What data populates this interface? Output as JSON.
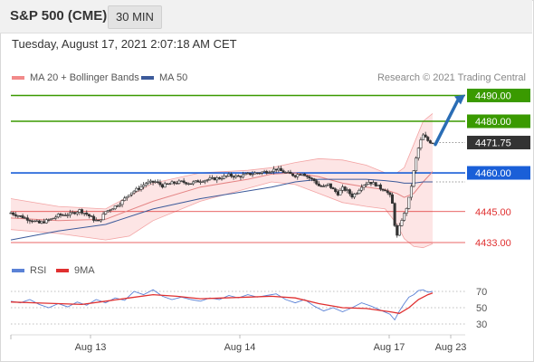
{
  "header": {
    "symbol_title": "S&P 500 (CME)",
    "interval": "30 MIN"
  },
  "timestamp": "Tuesday, August 17, 2021 2:07:18 AM CET",
  "legend": {
    "bollinger_label": "MA 20 + Bollinger Bands",
    "ma50_label": "MA 50",
    "copyright": "Research © 2021 Trading Central"
  },
  "rsi_legend": {
    "rsi_label": "RSI",
    "ma_label": "9MA"
  },
  "colors": {
    "candle": "#333333",
    "candle_up": "#ffffff",
    "bollinger_fill": "#fde0e0",
    "bollinger_line": "#f3a4a4",
    "ma20": "#e48484",
    "ma50": "#3c5a9a",
    "target": "#3a9a00",
    "pivot": "#1a5fd8",
    "support": "#e03030",
    "last_price": "#333333",
    "arrow": "#2a6db5",
    "rsi": "#5b82d6",
    "rsi_ma": "#e03030"
  },
  "chart_data": [
    {
      "type": "candlestick",
      "title": "S&P 500 (CME)",
      "interval": "30 MIN",
      "x_tick_labels": [
        "Aug 13",
        "Aug 14",
        "Aug 17",
        "Aug 23"
      ],
      "ylim": [
        4428,
        4496
      ],
      "last_price": 4471.75,
      "levels": [
        {
          "label": "4490.00",
          "value": 4490.0,
          "kind": "target",
          "color": "#3a9a00"
        },
        {
          "label": "4480.00",
          "value": 4480.0,
          "kind": "target",
          "color": "#3a9a00"
        },
        {
          "label": "4460.00",
          "value": 4460.0,
          "kind": "pivot",
          "color": "#1a5fd8"
        },
        {
          "label": "4445.00",
          "value": 4445.0,
          "kind": "support",
          "color": "#e03030"
        },
        {
          "label": "4433.00",
          "value": 4433.0,
          "kind": "support",
          "color": "#e03030"
        }
      ],
      "last_price_label": "4471.75",
      "projection": {
        "from": 4471.0,
        "to": 4490.0
      },
      "close_path": [
        [
          0,
          4444.5
        ],
        [
          6,
          4442.5
        ],
        [
          12,
          4440.5
        ],
        [
          17,
          4442
        ],
        [
          20,
          4443.5
        ],
        [
          25,
          4444
        ],
        [
          29,
          4445.5
        ],
        [
          32,
          4444
        ],
        [
          35,
          4442
        ],
        [
          37,
          4441
        ],
        [
          40,
          4445
        ],
        [
          44,
          4447
        ],
        [
          47,
          4449
        ],
        [
          50,
          4452
        ],
        [
          54,
          4454
        ],
        [
          57,
          4456
        ],
        [
          61,
          4456.5
        ],
        [
          64,
          4455
        ],
        [
          68,
          4456
        ],
        [
          72,
          4456.5
        ],
        [
          76,
          4456
        ],
        [
          80,
          4457
        ],
        [
          84,
          4457.5
        ],
        [
          88,
          4458
        ],
        [
          92,
          4459
        ],
        [
          96,
          4458.5
        ],
        [
          100,
          4459.5
        ],
        [
          104,
          4460
        ],
        [
          108,
          4460.5
        ],
        [
          112,
          4461.5
        ],
        [
          116,
          4460
        ],
        [
          120,
          4459
        ],
        [
          123,
          4460
        ],
        [
          126,
          4458
        ],
        [
          128,
          4457
        ],
        [
          130,
          4455
        ],
        [
          132,
          4454.5
        ],
        [
          134,
          4455.5
        ],
        [
          136,
          4453.5
        ],
        [
          138,
          4452
        ],
        [
          140,
          4454
        ],
        [
          142,
          4453
        ],
        [
          144,
          4451
        ],
        [
          146,
          4452.5
        ],
        [
          148,
          4455
        ],
        [
          151,
          4456.5
        ],
        [
          154,
          4455.5
        ],
        [
          156,
          4454
        ],
        [
          158,
          4453.5
        ],
        [
          160,
          4451
        ],
        [
          161,
          4448
        ],
        [
          162,
          4440
        ],
        [
          163,
          4435.5
        ],
        [
          164,
          4439
        ],
        [
          165,
          4442
        ],
        [
          166,
          4444
        ],
        [
          167,
          4446.5
        ],
        [
          168,
          4450
        ],
        [
          169,
          4455
        ],
        [
          170,
          4460.5
        ],
        [
          171,
          4465.5
        ],
        [
          172,
          4469.5
        ],
        [
          173,
          4472.5
        ],
        [
          174,
          4474.5
        ],
        [
          175,
          4473.5
        ],
        [
          176,
          4472.5
        ],
        [
          177,
          4472
        ],
        [
          178,
          4471.75
        ]
      ],
      "ma20_path": [
        [
          0,
          4442.5
        ],
        [
          20,
          4441.5
        ],
        [
          40,
          4442
        ],
        [
          60,
          4449
        ],
        [
          80,
          4454.5
        ],
        [
          100,
          4457.5
        ],
        [
          110,
          4459.5
        ],
        [
          120,
          4460
        ],
        [
          130,
          4458.5
        ],
        [
          140,
          4456
        ],
        [
          150,
          4454.5
        ],
        [
          158,
          4453.5
        ],
        [
          163,
          4452
        ],
        [
          166,
          4450.5
        ],
        [
          170,
          4452
        ],
        [
          174,
          4456.5
        ],
        [
          178,
          4460.5
        ]
      ],
      "bollinger_upper_path": [
        [
          0,
          4450
        ],
        [
          20,
          4447
        ],
        [
          40,
          4446
        ],
        [
          60,
          4456
        ],
        [
          80,
          4460
        ],
        [
          100,
          4461
        ],
        [
          110,
          4462
        ],
        [
          120,
          4464
        ],
        [
          130,
          4465.5
        ],
        [
          140,
          4465
        ],
        [
          150,
          4463
        ],
        [
          158,
          4460
        ],
        [
          163,
          4460
        ],
        [
          166,
          4462
        ],
        [
          170,
          4471
        ],
        [
          174,
          4480
        ],
        [
          178,
          4483
        ]
      ],
      "bollinger_lower_path": [
        [
          0,
          4438
        ],
        [
          20,
          4436.5
        ],
        [
          40,
          4434
        ],
        [
          50,
          4435.5
        ],
        [
          60,
          4441.5
        ],
        [
          80,
          4449
        ],
        [
          100,
          4454
        ],
        [
          110,
          4456.5
        ],
        [
          120,
          4455.5
        ],
        [
          130,
          4452
        ],
        [
          140,
          4448.5
        ],
        [
          150,
          4447
        ],
        [
          158,
          4446
        ],
        [
          163,
          4440
        ],
        [
          166,
          4434.5
        ],
        [
          170,
          4431.5
        ],
        [
          174,
          4431
        ],
        [
          178,
          4432.5
        ]
      ],
      "ma50_path": [
        [
          0,
          4434
        ],
        [
          20,
          4437.5
        ],
        [
          40,
          4440
        ],
        [
          60,
          4446
        ],
        [
          80,
          4450
        ],
        [
          100,
          4453
        ],
        [
          110,
          4454.5
        ],
        [
          120,
          4456.5
        ],
        [
          130,
          4457.5
        ],
        [
          140,
          4457.5
        ],
        [
          150,
          4457.5
        ],
        [
          158,
          4457
        ],
        [
          163,
          4456.5
        ],
        [
          166,
          4456
        ],
        [
          170,
          4456
        ],
        [
          174,
          4456.5
        ],
        [
          178,
          4456.5
        ]
      ]
    },
    {
      "type": "line",
      "title": "RSI",
      "y_tick_labels": [
        "70",
        "50",
        "30"
      ],
      "ylim": [
        20,
        80
      ],
      "series": [
        {
          "name": "RSI",
          "color": "#5b82d6",
          "values": [
            [
              0,
              58
            ],
            [
              4,
              56
            ],
            [
              8,
              60
            ],
            [
              12,
              54
            ],
            [
              16,
              50
            ],
            [
              20,
              55
            ],
            [
              24,
              51
            ],
            [
              28,
              57
            ],
            [
              32,
              53
            ],
            [
              36,
              60
            ],
            [
              40,
              56
            ],
            [
              44,
              62
            ],
            [
              48,
              59
            ],
            [
              52,
              70
            ],
            [
              56,
              66
            ],
            [
              60,
              72
            ],
            [
              64,
              64
            ],
            [
              68,
              60
            ],
            [
              72,
              63
            ],
            [
              76,
              60
            ],
            [
              80,
              58
            ],
            [
              84,
              62
            ],
            [
              88,
              60
            ],
            [
              92,
              65
            ],
            [
              96,
              62
            ],
            [
              100,
              66
            ],
            [
              104,
              63
            ],
            [
              108,
              65
            ],
            [
              112,
              67
            ],
            [
              116,
              60
            ],
            [
              120,
              56
            ],
            [
              124,
              60
            ],
            [
              128,
              52
            ],
            [
              132,
              46
            ],
            [
              136,
              50
            ],
            [
              140,
              45
            ],
            [
              144,
              50
            ],
            [
              148,
              56
            ],
            [
              152,
              52
            ],
            [
              156,
              47
            ],
            [
              160,
              42
            ],
            [
              162,
              35
            ],
            [
              164,
              46
            ],
            [
              166,
              55
            ],
            [
              168,
              63
            ],
            [
              170,
              66
            ],
            [
              172,
              71
            ],
            [
              174,
              72
            ],
            [
              176,
              69
            ],
            [
              178,
              70
            ]
          ]
        },
        {
          "name": "9MA",
          "color": "#e03030",
          "values": [
            [
              0,
              57
            ],
            [
              10,
              56
            ],
            [
              20,
              55
            ],
            [
              30,
              54
            ],
            [
              40,
              58
            ],
            [
              50,
              62
            ],
            [
              60,
              66
            ],
            [
              70,
              64
            ],
            [
              80,
              61
            ],
            [
              90,
              62
            ],
            [
              100,
              63
            ],
            [
              110,
              64
            ],
            [
              120,
              62
            ],
            [
              130,
              55
            ],
            [
              140,
              50
            ],
            [
              150,
              49
            ],
            [
              160,
              45
            ],
            [
              164,
              43
            ],
            [
              168,
              50
            ],
            [
              172,
              60
            ],
            [
              176,
              66
            ],
            [
              178,
              68
            ]
          ]
        }
      ]
    }
  ]
}
